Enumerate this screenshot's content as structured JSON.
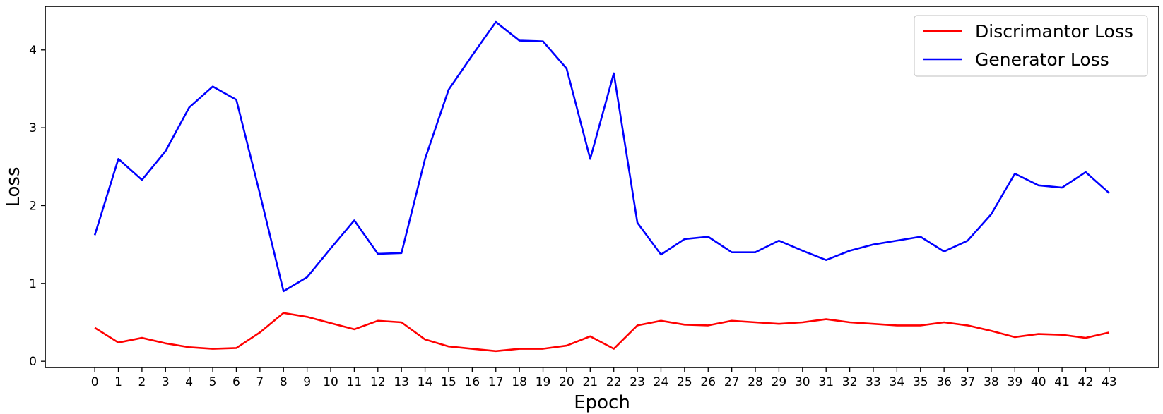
{
  "chart_data": {
    "type": "line",
    "xlabel": "Epoch",
    "ylabel": "Loss",
    "x": [
      0,
      1,
      2,
      3,
      4,
      5,
      6,
      7,
      8,
      9,
      10,
      11,
      12,
      13,
      14,
      15,
      16,
      17,
      18,
      19,
      20,
      21,
      22,
      23,
      24,
      25,
      26,
      27,
      28,
      29,
      30,
      31,
      32,
      33,
      34,
      35,
      36,
      37,
      38,
      39,
      40,
      41,
      42,
      43
    ],
    "x_ticks": [
      "0",
      "1",
      "2",
      "3",
      "4",
      "5",
      "6",
      "7",
      "8",
      "9",
      "10",
      "11",
      "12",
      "13",
      "14",
      "15",
      "16",
      "17",
      "18",
      "19",
      "20",
      "21",
      "22",
      "23",
      "24",
      "25",
      "26",
      "27",
      "28",
      "29",
      "30",
      "31",
      "32",
      "33",
      "34",
      "35",
      "36",
      "37",
      "38",
      "39",
      "40",
      "41",
      "42",
      "43"
    ],
    "y_ticks": [
      "0",
      "1",
      "2",
      "3",
      "4"
    ],
    "xlim": [
      -2.1,
      45.1
    ],
    "ylim": [
      -0.08,
      4.56
    ],
    "grid": false,
    "legend_position": "top-right",
    "series": [
      {
        "name": "Discrimantor Loss",
        "color": "#ff0000",
        "values": [
          0.43,
          0.24,
          0.3,
          0.23,
          0.18,
          0.16,
          0.17,
          0.37,
          0.62,
          0.57,
          0.49,
          0.41,
          0.52,
          0.5,
          0.28,
          0.19,
          0.16,
          0.13,
          0.16,
          0.16,
          0.2,
          0.32,
          0.16,
          0.46,
          0.52,
          0.47,
          0.46,
          0.52,
          0.5,
          0.48,
          0.5,
          0.54,
          0.5,
          0.48,
          0.46,
          0.46,
          0.5,
          0.46,
          0.39,
          0.31,
          0.35,
          0.34,
          0.3,
          0.37
        ]
      },
      {
        "name": "Generator Loss",
        "color": "#0000ff",
        "values": [
          1.62,
          2.6,
          2.33,
          2.7,
          3.26,
          3.53,
          3.36,
          2.15,
          0.9,
          1.08,
          1.45,
          1.81,
          1.38,
          1.39,
          2.6,
          3.49,
          3.93,
          4.36,
          4.12,
          4.11,
          3.76,
          2.6,
          3.7,
          1.78,
          1.37,
          1.57,
          1.6,
          1.4,
          1.4,
          1.55,
          1.42,
          1.3,
          1.42,
          1.5,
          1.55,
          1.6,
          1.41,
          1.55,
          1.89,
          2.41,
          2.26,
          2.23,
          2.43,
          2.16
        ]
      }
    ]
  }
}
